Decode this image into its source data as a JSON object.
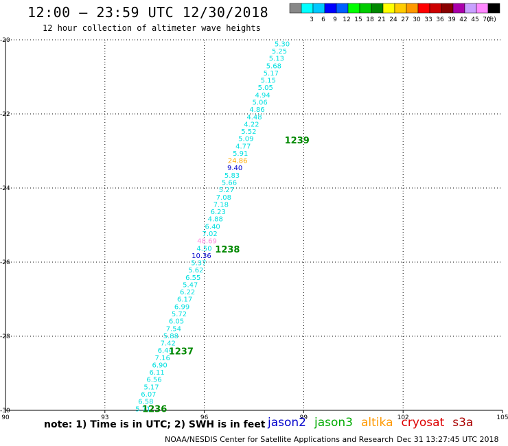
{
  "header": {
    "title": "12:00 – 23:59 UTC 12/30/2018",
    "subtitle": "12 hour collection of altimeter wave heights"
  },
  "color_scale": {
    "unit": "(ft)",
    "bins": [
      {
        "label": "",
        "color": "#888888"
      },
      {
        "label": "3",
        "color": "#00ffff"
      },
      {
        "label": "6",
        "color": "#00c8ff"
      },
      {
        "label": "9",
        "color": "#0000ff"
      },
      {
        "label": "12",
        "color": "#0060ff"
      },
      {
        "label": "15",
        "color": "#00ff00"
      },
      {
        "label": "18",
        "color": "#00cc00"
      },
      {
        "label": "21",
        "color": "#008800"
      },
      {
        "label": "24",
        "color": "#ffff00"
      },
      {
        "label": "27",
        "color": "#ffcc00"
      },
      {
        "label": "30",
        "color": "#ff9900"
      },
      {
        "label": "33",
        "color": "#ff0000"
      },
      {
        "label": "36",
        "color": "#cc0000"
      },
      {
        "label": "39",
        "color": "#880000"
      },
      {
        "label": "42",
        "color": "#aa00aa"
      },
      {
        "label": "45",
        "color": "#c8a0ff"
      },
      {
        "label": "70",
        "color": "#ff88ff"
      },
      {
        "label": "",
        "color": "#000000"
      }
    ]
  },
  "chart_data": {
    "type": "scatter",
    "xlim": [
      90,
      105
    ],
    "ylim": [
      -30,
      -20
    ],
    "x_ticks": [
      90,
      93,
      96,
      99,
      102,
      105
    ],
    "y_ticks": [
      -20,
      -22,
      -24,
      -26,
      -28,
      -30
    ],
    "grid": true,
    "track": {
      "satellite": "jason3",
      "start": [
        98.35,
        -20.1
      ],
      "end": [
        94.15,
        -29.95
      ],
      "values": [
        "5.30",
        "5.25",
        "5.13",
        "5.68",
        "5.17",
        "5.15",
        "5.05",
        "4.94",
        "5.06",
        "4.86",
        "4.48",
        "4.22",
        "5.52",
        "5.09",
        "4.77",
        "5.91",
        "24.86",
        "9.40",
        "5.83",
        "5.66",
        "5.27",
        "7.08",
        "7.18",
        "6.23",
        "4.88",
        "6.40",
        "7.02",
        "48.69",
        "4.50",
        "10.36",
        "5.37",
        "5.62",
        "6.55",
        "5.47",
        "6.22",
        "6.17",
        "6.99",
        "5.72",
        "6.05",
        "7.54",
        "5.88",
        "7.42",
        "6.44",
        "7.16",
        "6.90",
        "6.11",
        "6.56",
        "5.17",
        "6.07",
        "6.58",
        "5.71"
      ],
      "colors": [
        "#00e0e0",
        "#00e0e0",
        "#00e0e0",
        "#00e0e0",
        "#00e0e0",
        "#00e0e0",
        "#00e0e0",
        "#00e0e0",
        "#00e0e0",
        "#00e0e0",
        "#00e0e0",
        "#00e0e0",
        "#00e0e0",
        "#00e0e0",
        "#00e0e0",
        "#00e0e0",
        "#ffaa00",
        "#0000cc",
        "#00e0e0",
        "#00e0e0",
        "#00e0e0",
        "#00e0e0",
        "#00e0e0",
        "#00e0e0",
        "#00e0e0",
        "#00e0e0",
        "#00e0e0",
        "#ff88dd",
        "#00e0e0",
        "#0000cc",
        "#00e0e0",
        "#00e0e0",
        "#00e0e0",
        "#00e0e0",
        "#00e0e0",
        "#00e0e0",
        "#00e0e0",
        "#00e0e0",
        "#00e0e0",
        "#00e0e0",
        "#00e0e0",
        "#00e0e0",
        "#00e0e0",
        "#00e0e0",
        "#00e0e0",
        "#00e0e0",
        "#00e0e0",
        "#00e0e0",
        "#00e0e0",
        "#00e0e0",
        "#00e0e0"
      ]
    },
    "time_labels": [
      {
        "text": "1239",
        "x": 98.8,
        "y": -22.7
      },
      {
        "text": "1238",
        "x": 96.7,
        "y": -25.65
      },
      {
        "text": "1237",
        "x": 95.3,
        "y": -28.4
      },
      {
        "text": "1236",
        "x": 94.5,
        "y": -29.95
      }
    ],
    "time_label_color": "#008800"
  },
  "footer": {
    "note": "note: 1) Time is in UTC; 2) SWH is in feet",
    "legend": [
      {
        "name": "jason2",
        "color": "#0000cc"
      },
      {
        "name": "jason3",
        "color": "#00aa00"
      },
      {
        "name": "altika",
        "color": "#ff9900"
      },
      {
        "name": "cryosat",
        "color": "#dd0000"
      },
      {
        "name": "s3a",
        "color": "#aa0000"
      }
    ],
    "credit": "NOAA/NESDIS Center for Satellite Applications and Research",
    "timestamp": "Dec 31 13:27:45 UTC 2018"
  }
}
